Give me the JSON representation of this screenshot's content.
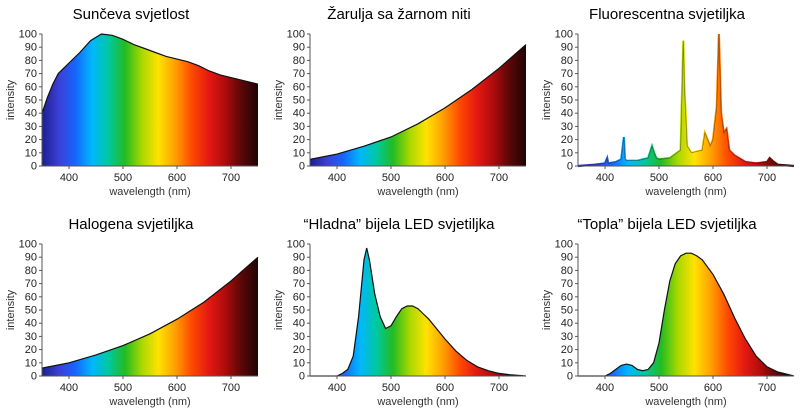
{
  "spectrum_stops": [
    "#1b1f8f",
    "#3b3fd6",
    "#1565ff",
    "#00b7ff",
    "#00c8a0",
    "#22bb22",
    "#a8d800",
    "#ffe200",
    "#ffa000",
    "#ff4a00",
    "#e51a12",
    "#b00c0c",
    "#5a0707",
    "#200303"
  ],
  "chart_data": [
    {
      "type": "area",
      "title": "Sunčeva svjetlost",
      "xlabel": "wavelength (nm)",
      "ylabel": "intensity",
      "xlim": [
        350,
        750
      ],
      "ylim": [
        0,
        100
      ],
      "xticks": [
        400,
        500,
        600,
        700
      ],
      "yticks": [
        0,
        10,
        20,
        30,
        40,
        50,
        60,
        70,
        80,
        90,
        100
      ],
      "x": [
        350,
        360,
        370,
        380,
        390,
        400,
        420,
        440,
        460,
        480,
        500,
        520,
        540,
        560,
        580,
        600,
        620,
        640,
        660,
        680,
        700,
        720,
        740,
        750
      ],
      "y": [
        40,
        52,
        62,
        70,
        74,
        78,
        86,
        95,
        100,
        99,
        96,
        92,
        89,
        86,
        83,
        81,
        79,
        76,
        72,
        69,
        67,
        65,
        63,
        62
      ]
    },
    {
      "type": "area",
      "title": "Žarulja sa žarnom niti",
      "xlabel": "wavelength (nm)",
      "ylabel": "intensity",
      "xlim": [
        350,
        750
      ],
      "ylim": [
        0,
        100
      ],
      "xticks": [
        400,
        500,
        600,
        700
      ],
      "yticks": [
        0,
        10,
        20,
        30,
        40,
        50,
        60,
        70,
        80,
        90,
        100
      ],
      "x": [
        350,
        400,
        450,
        500,
        550,
        600,
        650,
        700,
        750
      ],
      "y": [
        5,
        9,
        15,
        22,
        32,
        44,
        58,
        74,
        92
      ]
    },
    {
      "type": "line",
      "title": "Fluorescentna svjetiljka",
      "xlabel": "wavelength (nm)",
      "ylabel": "intensity",
      "xlim": [
        350,
        750
      ],
      "ylim": [
        0,
        100
      ],
      "xticks": [
        400,
        500,
        600,
        700
      ],
      "yticks": [
        0,
        10,
        20,
        30,
        40,
        50,
        60,
        70,
        80,
        90,
        100
      ],
      "x": [
        350,
        380,
        400,
        404,
        406,
        420,
        430,
        435,
        437,
        440,
        460,
        480,
        487,
        491,
        495,
        500,
        520,
        540,
        543,
        545,
        547,
        552,
        560,
        580,
        585,
        590,
        595,
        600,
        607,
        611,
        615,
        620,
        625,
        630,
        640,
        660,
        680,
        700,
        705,
        710,
        720,
        750
      ],
      "y": [
        0,
        1,
        2,
        6,
        2,
        3,
        5,
        22,
        5,
        4,
        4,
        6,
        15,
        10,
        6,
        5,
        6,
        12,
        60,
        95,
        60,
        15,
        10,
        12,
        25,
        20,
        15,
        20,
        45,
        100,
        40,
        25,
        28,
        12,
        8,
        3,
        2,
        3,
        6,
        4,
        1,
        0
      ]
    },
    {
      "type": "area",
      "title": "Halogena svjetiljka",
      "xlabel": "wavelength (nm)",
      "ylabel": "intensity",
      "xlim": [
        350,
        750
      ],
      "ylim": [
        0,
        100
      ],
      "xticks": [
        400,
        500,
        600,
        700
      ],
      "yticks": [
        0,
        10,
        20,
        30,
        40,
        50,
        60,
        70,
        80,
        90,
        100
      ],
      "x": [
        350,
        400,
        450,
        500,
        550,
        600,
        650,
        700,
        750
      ],
      "y": [
        6,
        10,
        16,
        23,
        32,
        43,
        56,
        72,
        90
      ]
    },
    {
      "type": "area",
      "title": "“Hladna” bijela LED svjetiljka",
      "xlabel": "wavelength (nm)",
      "ylabel": "intensity",
      "xlim": [
        350,
        750
      ],
      "ylim": [
        0,
        100
      ],
      "xticks": [
        400,
        500,
        600,
        700
      ],
      "yticks": [
        0,
        10,
        20,
        30,
        40,
        50,
        60,
        70,
        80,
        90,
        100
      ],
      "x": [
        350,
        400,
        410,
        420,
        430,
        440,
        450,
        455,
        460,
        470,
        480,
        490,
        500,
        510,
        520,
        530,
        540,
        550,
        560,
        570,
        580,
        600,
        620,
        640,
        660,
        680,
        700,
        720,
        750
      ],
      "y": [
        0,
        0,
        2,
        5,
        15,
        45,
        88,
        97,
        88,
        62,
        45,
        36,
        38,
        45,
        51,
        53,
        53,
        51,
        47,
        43,
        38,
        28,
        19,
        12,
        7,
        4,
        2,
        1,
        0
      ]
    },
    {
      "type": "area",
      "title": "“Topla” bijela LED svjetiljka",
      "xlabel": "wavelength (nm)",
      "ylabel": "intensity",
      "xlim": [
        350,
        750
      ],
      "ylim": [
        0,
        100
      ],
      "xticks": [
        400,
        500,
        600,
        700
      ],
      "yticks": [
        0,
        10,
        20,
        30,
        40,
        50,
        60,
        70,
        80,
        90,
        100
      ],
      "x": [
        350,
        400,
        410,
        420,
        430,
        440,
        450,
        460,
        470,
        480,
        490,
        500,
        510,
        520,
        530,
        540,
        550,
        560,
        570,
        580,
        600,
        620,
        640,
        660,
        680,
        700,
        720,
        750
      ],
      "y": [
        0,
        0,
        2,
        5,
        8,
        9,
        8,
        5,
        4,
        5,
        10,
        25,
        50,
        72,
        85,
        91,
        93,
        93,
        91,
        88,
        77,
        62,
        44,
        28,
        15,
        7,
        3,
        0
      ]
    }
  ]
}
